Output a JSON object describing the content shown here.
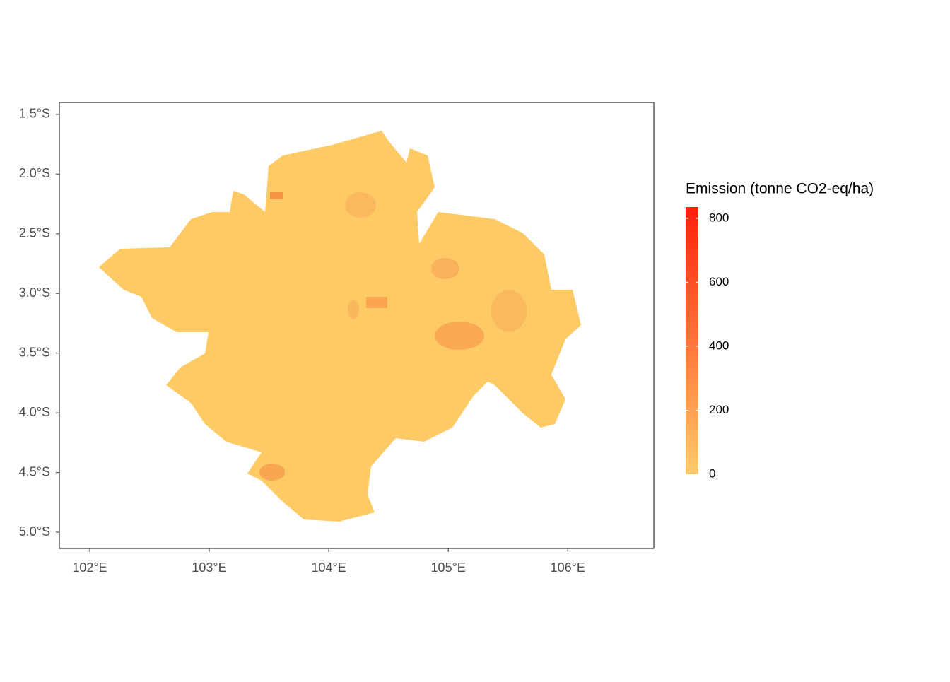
{
  "chart_data": {
    "type": "map",
    "xlim": [
      101.746,
      106.72
    ],
    "ylim": [
      -5.136,
      -1.4
    ],
    "xticks": [
      {
        "value": 102,
        "label": "102°E"
      },
      {
        "value": 103,
        "label": "103°E"
      },
      {
        "value": 104,
        "label": "104°E"
      },
      {
        "value": 105,
        "label": "105°E"
      },
      {
        "value": 106,
        "label": "106°E"
      }
    ],
    "yticks": [
      {
        "value": -1.5,
        "label": "1.5°S"
      },
      {
        "value": -2.0,
        "label": "2.0°S"
      },
      {
        "value": -2.5,
        "label": "2.5°S"
      },
      {
        "value": -3.0,
        "label": "3.0°S"
      },
      {
        "value": -3.5,
        "label": "3.5°S"
      },
      {
        "value": -4.0,
        "label": "4.0°S"
      },
      {
        "value": -4.5,
        "label": "4.5°S"
      },
      {
        "value": -5.0,
        "label": "5.0°S"
      }
    ],
    "legend": {
      "title": "Emission (tonne CO2-eq/ha)",
      "position": "right",
      "lim": [
        0,
        835
      ],
      "ticks": [
        0,
        200,
        400,
        600,
        800
      ],
      "colors": [
        "#fecb67",
        "#ff1e0a"
      ]
    }
  }
}
